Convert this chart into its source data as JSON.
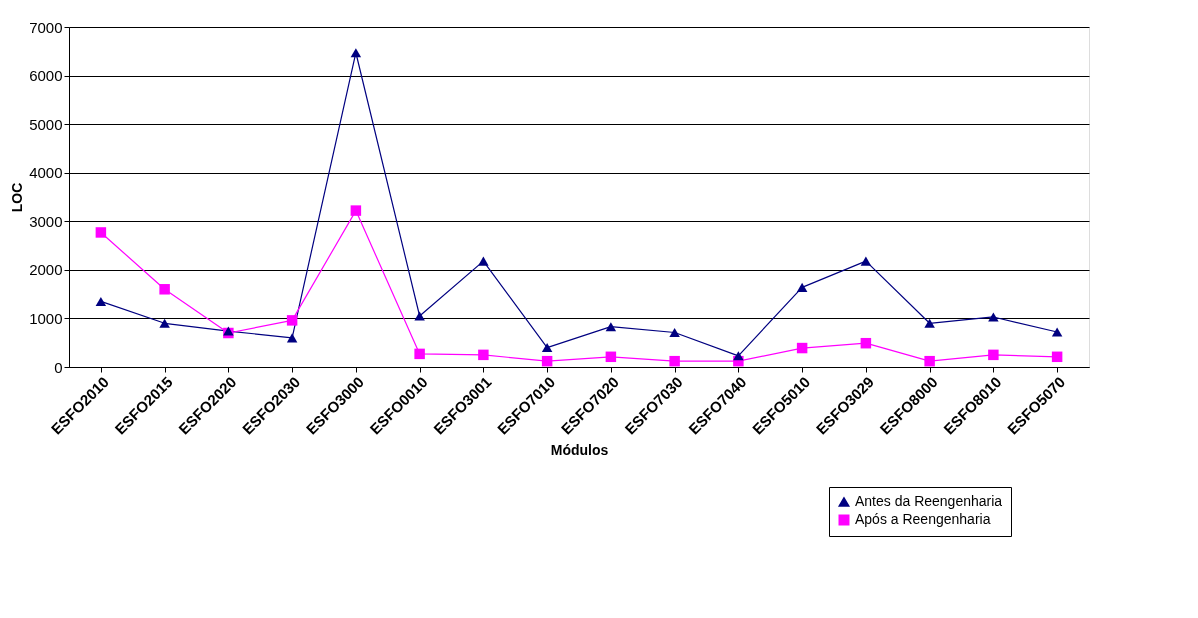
{
  "chart_data": {
    "type": "line",
    "xlabel": "Módulos",
    "ylabel": "LOC",
    "categories": [
      "ESFO2010",
      "ESFO2015",
      "ESFO2020",
      "ESFO2030",
      "ESFO3000",
      "ESFO0010",
      "ESFO3001",
      "ESFO7010",
      "ESFO7020",
      "ESFO7030",
      "ESFO7040",
      "ESFO5010",
      "ESFO3029",
      "ESFO8000",
      "ESFO8010",
      "ESFO5070"
    ],
    "series": [
      {
        "name": "Antes da Reengenharia",
        "color": "#000080",
        "marker": "triangle",
        "values": [
          1350,
          900,
          740,
          600,
          6470,
          1050,
          2180,
          400,
          830,
          710,
          230,
          1640,
          2180,
          900,
          1030,
          720
        ]
      },
      {
        "name": "Após a Reengenharia",
        "color": "#ff00ff",
        "marker": "square",
        "values": [
          2770,
          1600,
          700,
          960,
          3220,
          270,
          250,
          120,
          210,
          120,
          120,
          390,
          490,
          120,
          250,
          210
        ]
      }
    ],
    "ylim": [
      0,
      7000
    ],
    "yticks": [
      0,
      1000,
      2000,
      3000,
      4000,
      5000,
      6000,
      7000
    ],
    "grid": "y",
    "legend": "bottom right",
    "line_style": "solid"
  }
}
